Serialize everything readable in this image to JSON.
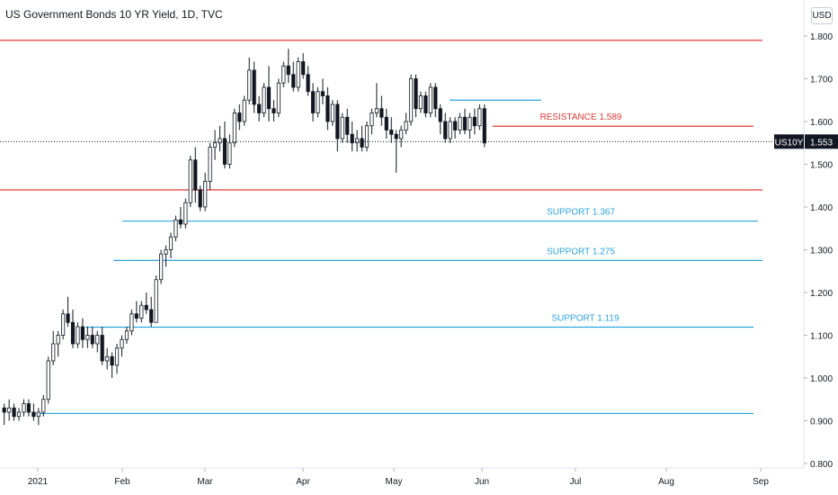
{
  "header": {
    "title": "US Government Bonds 10 YR Yield, 1D, TVC",
    "currency": "USD"
  },
  "chart_data": {
    "type": "candlestick",
    "title": "US Government Bonds 10 YR Yield, 1D, TVC",
    "ylim": [
      0.8,
      1.8
    ],
    "y_ticks": [
      "1.800",
      "1.700",
      "1.600",
      "1.500",
      "1.400",
      "1.300",
      "1.200",
      "1.100",
      "1.000",
      "0.900",
      "0.800"
    ],
    "x_ticks": [
      "2021",
      "Feb",
      "Mar",
      "Apr",
      "May",
      "Jun",
      "Jul",
      "Aug",
      "Sep"
    ],
    "last_price": {
      "symbol": "US10Y",
      "value": "1.553"
    },
    "levels": [
      {
        "name": "resistance-top",
        "value": 1.79,
        "color": "#e53935",
        "label": ""
      },
      {
        "name": "resistance",
        "value": 1.589,
        "color": "#e53935",
        "label": "RESISTANCE 1.589"
      },
      {
        "name": "resistance-low",
        "value": 1.44,
        "color": "#e53935",
        "label": ""
      },
      {
        "name": "support-1",
        "value": 1.367,
        "color": "#2aa4e0",
        "label": "SUPPORT 1.367"
      },
      {
        "name": "support-2",
        "value": 1.275,
        "color": "#2aa4e0",
        "label": "SUPPORT 1.275"
      },
      {
        "name": "support-3",
        "value": 1.119,
        "color": "#2aa4e0",
        "label": "SUPPORT 1.119"
      },
      {
        "name": "support-4",
        "value": 0.917,
        "color": "#2aa4e0",
        "label": ""
      },
      {
        "name": "short-level",
        "value": 1.65,
        "color": "#2aa4e0",
        "label": ""
      }
    ],
    "candles": [
      [
        0.93,
        0.94,
        0.89,
        0.92
      ],
      [
        0.92,
        0.95,
        0.9,
        0.93
      ],
      [
        0.93,
        0.94,
        0.9,
        0.91
      ],
      [
        0.91,
        0.93,
        0.9,
        0.92
      ],
      [
        0.92,
        0.95,
        0.91,
        0.94
      ],
      [
        0.94,
        0.95,
        0.91,
        0.92
      ],
      [
        0.92,
        0.94,
        0.9,
        0.91
      ],
      [
        0.91,
        0.93,
        0.89,
        0.92
      ],
      [
        0.92,
        0.96,
        0.91,
        0.95
      ],
      [
        0.95,
        1.05,
        0.94,
        1.04
      ],
      [
        1.04,
        1.11,
        1.03,
        1.08
      ],
      [
        1.08,
        1.11,
        1.05,
        1.1
      ],
      [
        1.1,
        1.16,
        1.09,
        1.15
      ],
      [
        1.15,
        1.19,
        1.12,
        1.13
      ],
      [
        1.13,
        1.16,
        1.07,
        1.08
      ],
      [
        1.08,
        1.13,
        1.07,
        1.12
      ],
      [
        1.12,
        1.14,
        1.07,
        1.09
      ],
      [
        1.09,
        1.12,
        1.07,
        1.1
      ],
      [
        1.1,
        1.12,
        1.07,
        1.08
      ],
      [
        1.08,
        1.11,
        1.06,
        1.1
      ],
      [
        1.1,
        1.12,
        1.03,
        1.04
      ],
      [
        1.04,
        1.07,
        1.02,
        1.05
      ],
      [
        1.05,
        1.06,
        1.0,
        1.03
      ],
      [
        1.03,
        1.08,
        1.01,
        1.07
      ],
      [
        1.07,
        1.1,
        1.05,
        1.09
      ],
      [
        1.09,
        1.12,
        1.08,
        1.11
      ],
      [
        1.11,
        1.16,
        1.1,
        1.15
      ],
      [
        1.15,
        1.18,
        1.13,
        1.14
      ],
      [
        1.14,
        1.18,
        1.13,
        1.17
      ],
      [
        1.17,
        1.2,
        1.15,
        1.16
      ],
      [
        1.16,
        1.19,
        1.12,
        1.13
      ],
      [
        1.13,
        1.24,
        1.13,
        1.23
      ],
      [
        1.23,
        1.3,
        1.22,
        1.29
      ],
      [
        1.29,
        1.31,
        1.26,
        1.3
      ],
      [
        1.3,
        1.34,
        1.28,
        1.33
      ],
      [
        1.33,
        1.38,
        1.32,
        1.37
      ],
      [
        1.37,
        1.4,
        1.35,
        1.36
      ],
      [
        1.36,
        1.42,
        1.35,
        1.41
      ],
      [
        1.41,
        1.52,
        1.4,
        1.51
      ],
      [
        1.51,
        1.54,
        1.41,
        1.44
      ],
      [
        1.44,
        1.45,
        1.39,
        1.4
      ],
      [
        1.4,
        1.48,
        1.39,
        1.46
      ],
      [
        1.46,
        1.55,
        1.44,
        1.54
      ],
      [
        1.54,
        1.58,
        1.51,
        1.55
      ],
      [
        1.55,
        1.59,
        1.53,
        1.56
      ],
      [
        1.56,
        1.6,
        1.49,
        1.5
      ],
      [
        1.5,
        1.57,
        1.49,
        1.55
      ],
      [
        1.55,
        1.63,
        1.54,
        1.62
      ],
      [
        1.62,
        1.64,
        1.58,
        1.6
      ],
      [
        1.6,
        1.66,
        1.59,
        1.65
      ],
      [
        1.65,
        1.75,
        1.64,
        1.72
      ],
      [
        1.72,
        1.74,
        1.62,
        1.64
      ],
      [
        1.64,
        1.66,
        1.6,
        1.62
      ],
      [
        1.62,
        1.69,
        1.61,
        1.68
      ],
      [
        1.68,
        1.73,
        1.6,
        1.63
      ],
      [
        1.63,
        1.65,
        1.6,
        1.62
      ],
      [
        1.62,
        1.7,
        1.61,
        1.69
      ],
      [
        1.69,
        1.74,
        1.68,
        1.73
      ],
      [
        1.73,
        1.77,
        1.69,
        1.71
      ],
      [
        1.71,
        1.74,
        1.67,
        1.68
      ],
      [
        1.68,
        1.75,
        1.67,
        1.74
      ],
      [
        1.74,
        1.76,
        1.7,
        1.71
      ],
      [
        1.71,
        1.73,
        1.66,
        1.67
      ],
      [
        1.67,
        1.69,
        1.6,
        1.62
      ],
      [
        1.62,
        1.68,
        1.61,
        1.67
      ],
      [
        1.67,
        1.7,
        1.64,
        1.66
      ],
      [
        1.66,
        1.68,
        1.58,
        1.6
      ],
      [
        1.6,
        1.65,
        1.59,
        1.64
      ],
      [
        1.64,
        1.65,
        1.53,
        1.56
      ],
      [
        1.56,
        1.62,
        1.55,
        1.61
      ],
      [
        1.61,
        1.63,
        1.55,
        1.57
      ],
      [
        1.57,
        1.6,
        1.53,
        1.55
      ],
      [
        1.55,
        1.58,
        1.53,
        1.56
      ],
      [
        1.56,
        1.59,
        1.53,
        1.54
      ],
      [
        1.54,
        1.6,
        1.53,
        1.59
      ],
      [
        1.59,
        1.63,
        1.57,
        1.62
      ],
      [
        1.62,
        1.69,
        1.61,
        1.63
      ],
      [
        1.63,
        1.66,
        1.59,
        1.61
      ],
      [
        1.61,
        1.63,
        1.56,
        1.58
      ],
      [
        1.58,
        1.61,
        1.55,
        1.57
      ],
      [
        1.57,
        1.58,
        1.48,
        1.56
      ],
      [
        1.56,
        1.59,
        1.54,
        1.58
      ],
      [
        1.58,
        1.62,
        1.57,
        1.6
      ],
      [
        1.6,
        1.71,
        1.59,
        1.7
      ],
      [
        1.7,
        1.71,
        1.61,
        1.63
      ],
      [
        1.63,
        1.67,
        1.62,
        1.66
      ],
      [
        1.66,
        1.67,
        1.61,
        1.62
      ],
      [
        1.62,
        1.69,
        1.61,
        1.68
      ],
      [
        1.68,
        1.69,
        1.61,
        1.63
      ],
      [
        1.63,
        1.64,
        1.57,
        1.6
      ],
      [
        1.6,
        1.62,
        1.55,
        1.56
      ],
      [
        1.56,
        1.61,
        1.55,
        1.6
      ],
      [
        1.6,
        1.61,
        1.56,
        1.58
      ],
      [
        1.58,
        1.62,
        1.57,
        1.61
      ],
      [
        1.61,
        1.63,
        1.57,
        1.58
      ],
      [
        1.58,
        1.62,
        1.56,
        1.61
      ],
      [
        1.61,
        1.63,
        1.57,
        1.59
      ],
      [
        1.59,
        1.64,
        1.58,
        1.63
      ],
      [
        1.63,
        1.64,
        1.54,
        1.55
      ]
    ]
  }
}
